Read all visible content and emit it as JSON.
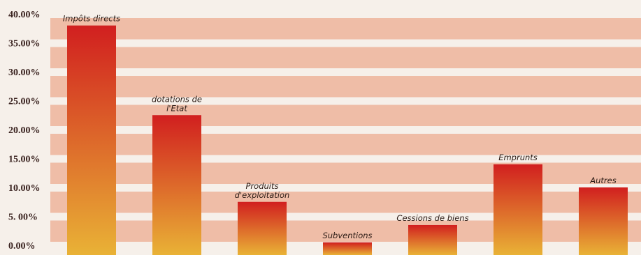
{
  "chart_data": {
    "type": "bar",
    "categories": [
      "Impôts directs",
      "dotations de l'Etat",
      "Produits d'exploitation",
      "Subventions",
      "Cessions de biens",
      "Emprunts",
      "Autres"
    ],
    "label_lines": [
      [
        "Impôts directs"
      ],
      [
        "dotations de",
        "l'Etat"
      ],
      [
        "Produits",
        "d'exploitation"
      ],
      [
        "Subventions"
      ],
      [
        "Cessions de biens"
      ],
      [
        "Emprunts"
      ],
      [
        "Autres"
      ]
    ],
    "values": [
      38,
      22.5,
      7.5,
      0.5,
      3.5,
      14,
      10
    ],
    "unit": "%",
    "ylim": [
      0,
      40
    ],
    "yticks": [
      0,
      5,
      10,
      15,
      20,
      25,
      30,
      35,
      40
    ],
    "ytick_labels": [
      "0.00%",
      "5. 00%",
      "10.00%",
      "15.00%",
      "20.00%",
      "25.00%",
      "30.00%",
      "35.00%",
      "40.00%"
    ],
    "title": "",
    "xlabel": "",
    "ylabel": "",
    "legend": "none",
    "grid": true,
    "colors": {
      "background": "#f6f0ea",
      "band": "#efbda7",
      "bar_top": "#d11f1f",
      "bar_bottom": "#e9b236",
      "text": "#2a1a14"
    }
  }
}
